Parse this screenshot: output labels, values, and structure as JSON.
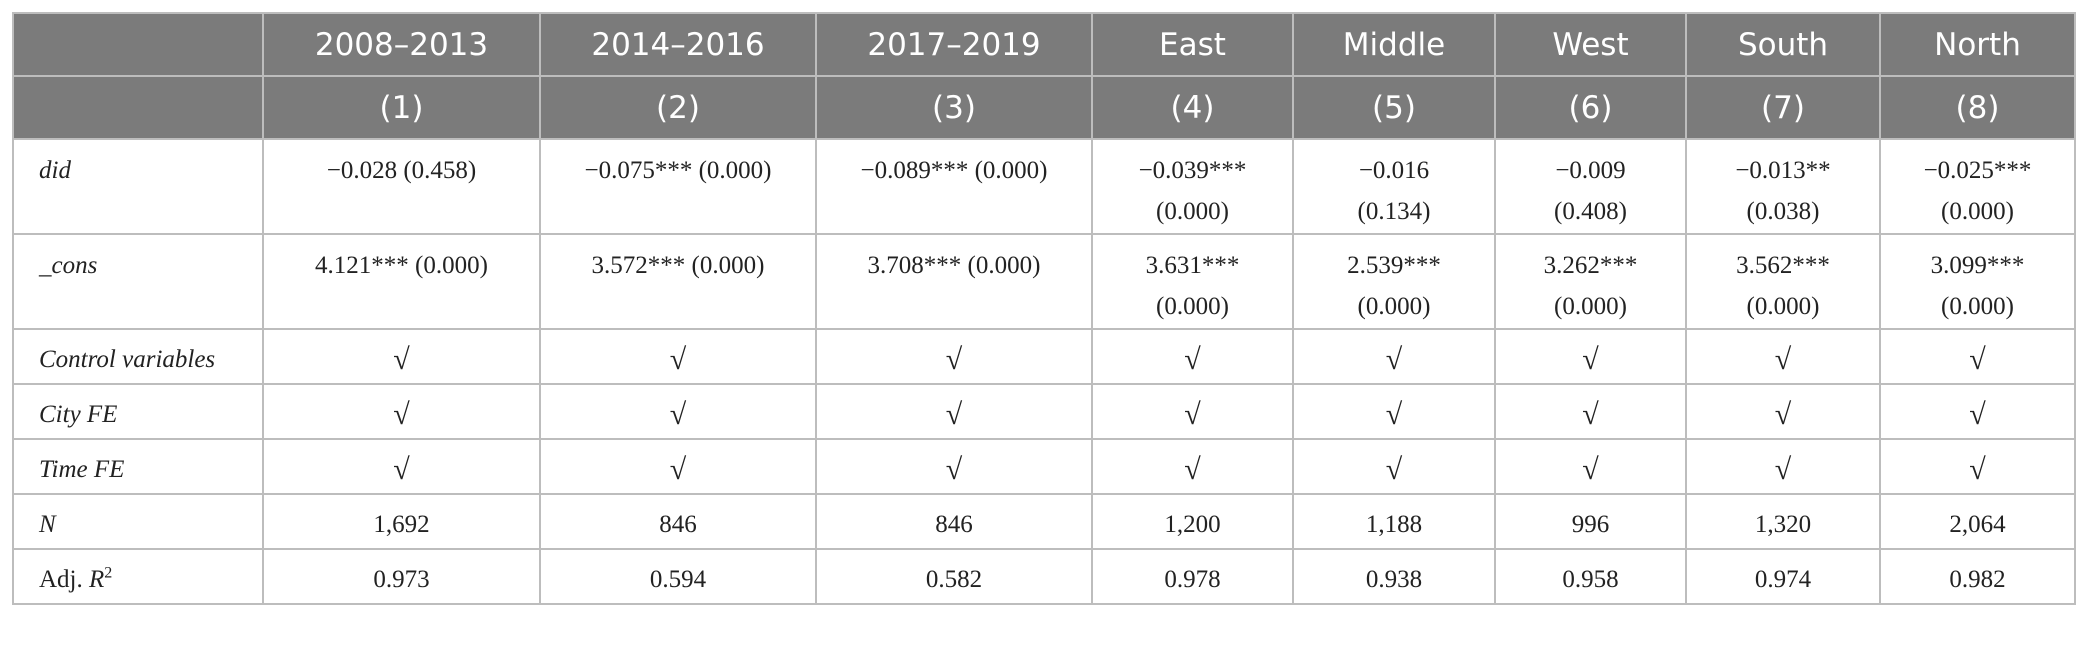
{
  "columns": {
    "label_header": "",
    "groups": [
      "2008–2013",
      "2014–2016",
      "2017–2019",
      "East",
      "Middle",
      "West",
      "South",
      "North"
    ],
    "numbers": [
      "(1)",
      "(2)",
      "(3)",
      "(4)",
      "(5)",
      "(6)",
      "(7)",
      "(8)"
    ]
  },
  "rows": {
    "did": {
      "label": "did",
      "cells": [
        [
          "−0.028 (0.458)"
        ],
        [
          "−0.075*** (0.000)"
        ],
        [
          "−0.089*** (0.000)"
        ],
        [
          "−0.039***",
          "(0.000)"
        ],
        [
          "−0.016",
          "(0.134)"
        ],
        [
          "−0.009",
          "(0.408)"
        ],
        [
          "−0.013**",
          "(0.038)"
        ],
        [
          "−0.025***",
          "(0.000)"
        ]
      ]
    },
    "cons": {
      "label": "_cons",
      "cells": [
        [
          "4.121*** (0.000)"
        ],
        [
          "3.572*** (0.000)"
        ],
        [
          "3.708*** (0.000)"
        ],
        [
          "3.631***",
          "(0.000)"
        ],
        [
          "2.539***",
          "(0.000)"
        ],
        [
          "3.262***",
          "(0.000)"
        ],
        [
          "3.562***",
          "(0.000)"
        ],
        [
          "3.099***",
          "(0.000)"
        ]
      ]
    },
    "control": {
      "label": "Control variables",
      "cells": [
        "√",
        "√",
        "√",
        "√",
        "√",
        "√",
        "√",
        "√"
      ]
    },
    "city_fe": {
      "label": "City FE",
      "cells": [
        "√",
        "√",
        "√",
        "√",
        "√",
        "√",
        "√",
        "√"
      ]
    },
    "time_fe": {
      "label": "Time FE",
      "cells": [
        "√",
        "√",
        "√",
        "√",
        "√",
        "√",
        "√",
        "√"
      ]
    },
    "n": {
      "label": "N",
      "cells": [
        "1,692",
        "846",
        "846",
        "1,200",
        "1,188",
        "996",
        "1,320",
        "2,064"
      ]
    },
    "adj_r2": {
      "label": "Adj. ",
      "label_italic": "R",
      "label_sup": "2",
      "cells": [
        "0.973",
        "0.594",
        "0.582",
        "0.978",
        "0.938",
        "0.958",
        "0.974",
        "0.982"
      ]
    }
  },
  "colors": {
    "header_bg": "#7b7b7b",
    "header_text": "#ffffff",
    "border": "#bdbdbd"
  }
}
